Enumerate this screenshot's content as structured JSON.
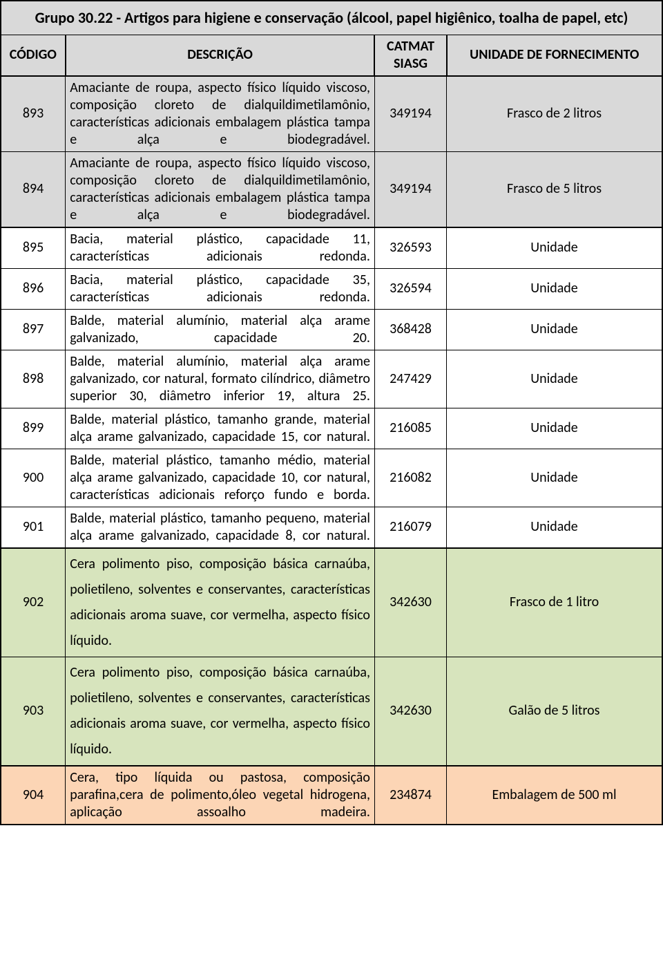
{
  "title": "Grupo 30.22 - Artigos para higiene e conservação (álcool, papel higiênico, toalha de papel, etc)",
  "headers": {
    "codigo": "CÓDIGO",
    "descricao": "DESCRIÇÃO",
    "catmat": "CATMAT SIASG",
    "unidade": "UNIDADE DE FORNECIMENTO"
  },
  "colors": {
    "header_bg": "#d9d9d9",
    "gray_bg": "#d9d9d9",
    "white_bg": "#ffffff",
    "green_bg": "#d7e4bd",
    "peach_bg": "#fcd5b5",
    "border": "#000000",
    "text": "#000000"
  },
  "rows": [
    {
      "codigo": "893",
      "descricao": "Amaciante de roupa, aspecto físico líquido viscoso, composição cloreto de dialquildimetilamônio, características adicionais embalagem plástica tampa e alça e biodegradável.",
      "catmat": "349194",
      "unidade": "Frasco de 2 litros",
      "row_color": "gray",
      "spaced": false
    },
    {
      "codigo": "894",
      "descricao": "Amaciante de roupa, aspecto físico líquido viscoso, composição cloreto de dialquildimetilamônio, características adicionais embalagem plástica tampa e alça e biodegradável.",
      "catmat": "349194",
      "unidade": "Frasco de 5 litros",
      "row_color": "gray",
      "spaced": false
    },
    {
      "codigo": "895",
      "descricao": "Bacia, material plástico, capacidade 11, características adicionais redonda.",
      "catmat": "326593",
      "unidade": "Unidade",
      "row_color": "white",
      "spaced": false
    },
    {
      "codigo": "896",
      "descricao": "Bacia, material plástico, capacidade 35, características adicionais redonda.",
      "catmat": "326594",
      "unidade": "Unidade",
      "row_color": "white",
      "spaced": false
    },
    {
      "codigo": "897",
      "descricao": "Balde, material alumínio, material alça arame galvanizado, capacidade 20.",
      "catmat": "368428",
      "unidade": "Unidade",
      "row_color": "white",
      "spaced": false
    },
    {
      "codigo": "898",
      "descricao": "Balde, material alumínio, material alça arame galvanizado, cor natural, formato cilíndrico, diâmetro superior 30, diâmetro inferior 19, altura 25.",
      "catmat": "247429",
      "unidade": "Unidade",
      "row_color": "white",
      "spaced": false
    },
    {
      "codigo": "899",
      "descricao": "Balde, material plástico, tamanho grande, material alça arame galvanizado, capacidade 15, cor natural.",
      "catmat": "216085",
      "unidade": "Unidade",
      "row_color": "white",
      "spaced": false
    },
    {
      "codigo": "900",
      "descricao": "Balde, material plástico, tamanho médio, material alça arame galvanizado, capacidade 10, cor natural, características adicionais reforço fundo e borda.",
      "catmat": "216082",
      "unidade": "Unidade",
      "row_color": "white",
      "spaced": false
    },
    {
      "codigo": "901",
      "descricao": "Balde, material plástico, tamanho pequeno, material alça arame galvanizado, capacidade 8, cor natural.",
      "catmat": "216079",
      "unidade": "Unidade",
      "row_color": "white",
      "spaced": false
    },
    {
      "codigo": "902",
      "descricao": "Cera polimento piso, composição básica carnaúba, polietileno, solventes e conservantes, características adicionais aroma suave, cor vermelha, aspecto físico líquido.",
      "catmat": "342630",
      "unidade": "Frasco de 1 litro",
      "row_color": "green",
      "spaced": true
    },
    {
      "codigo": "903",
      "descricao": "Cera polimento piso, composição básica carnaúba, polietileno, solventes e conservantes, características adicionais aroma suave, cor vermelha, aspecto físico líquido.",
      "catmat": "342630",
      "unidade": "Galão de 5 litros",
      "row_color": "green",
      "spaced": true
    },
    {
      "codigo": "904",
      "descricao": "Cera, tipo líquida ou pastosa, composição parafina,cera de polimento,óleo vegetal hidrogena, aplicação assoalho madeira.",
      "catmat": "234874",
      "unidade": "Embalagem de 500 ml",
      "row_color": "peach",
      "spaced": false
    }
  ]
}
